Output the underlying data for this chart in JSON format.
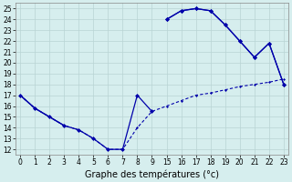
{
  "xlabel": "Graphe des températures (°c)",
  "bg_color": "#d6eeee",
  "line_color": "#0000aa",
  "grid_color": "#b8d4d4",
  "ylim": [
    11.5,
    25.5
  ],
  "yticks": [
    12,
    13,
    14,
    15,
    16,
    17,
    18,
    19,
    20,
    21,
    22,
    23,
    24,
    25
  ],
  "xlim": [
    -0.3,
    18.3
  ],
  "xtick_positions": [
    0,
    1,
    2,
    3,
    4,
    5,
    6,
    7,
    8,
    9,
    10,
    11,
    12,
    13,
    14,
    15,
    16,
    17,
    18
  ],
  "xtick_labels": [
    "0",
    "1",
    "2",
    "3",
    "4",
    "5",
    "6",
    "7",
    "8",
    "9",
    "15",
    "16",
    "17",
    "18",
    "19",
    "20",
    "21",
    "22",
    "23"
  ],
  "line1_x": [
    0,
    1,
    2,
    3,
    4,
    5,
    6,
    7,
    8,
    9
  ],
  "line1_y": [
    17.0,
    15.8,
    15.0,
    14.2,
    13.8,
    13.0,
    12.0,
    12.0,
    17.0,
    15.5
  ],
  "line1_xr": [
    10,
    11,
    12,
    13,
    14,
    15,
    16,
    17,
    18
  ],
  "line1_yr": [
    24.0,
    24.8,
    25.0,
    24.8,
    23.5,
    22.0,
    20.5,
    21.8,
    18.0
  ],
  "line2_x": [
    0,
    1,
    2,
    3
  ],
  "line2_y": [
    17.0,
    15.8,
    15.0,
    14.2
  ],
  "line2_xr": [
    10,
    11,
    12,
    13,
    14,
    15,
    16,
    17,
    18
  ],
  "line2_yr": [
    24.0,
    24.8,
    25.0,
    24.8,
    23.5,
    22.0,
    20.5,
    21.8,
    18.0
  ],
  "line3_x": [
    0,
    1,
    2,
    3,
    4,
    5,
    6,
    7,
    8,
    9,
    10,
    11,
    12,
    13,
    14,
    15,
    16,
    17,
    18
  ],
  "line3_y": [
    17.0,
    15.8,
    15.0,
    14.2,
    13.8,
    13.0,
    12.0,
    12.0,
    14.0,
    15.5,
    16.0,
    16.5,
    17.0,
    17.2,
    17.5,
    17.8,
    18.0,
    18.2,
    18.5
  ]
}
